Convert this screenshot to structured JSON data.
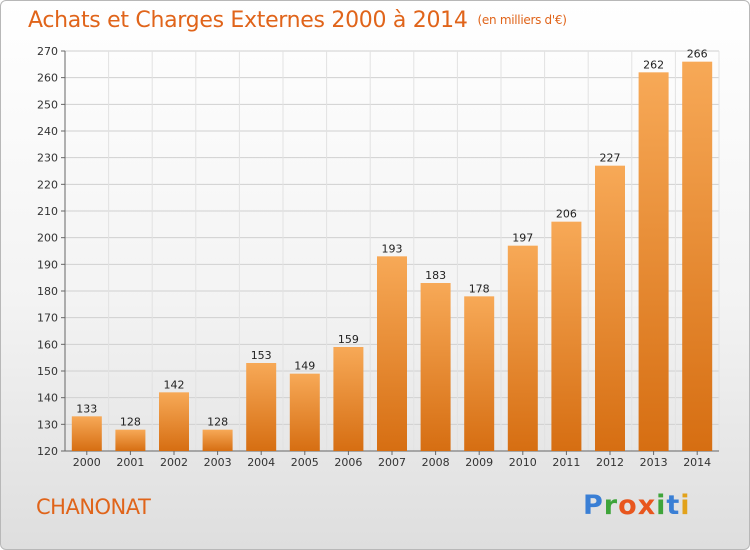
{
  "title": "Achats et Charges Externes 2000 à 2014",
  "unit_note": "(en milliers d'€)",
  "commune": "CHANONAT",
  "logo": {
    "text": "Proxiti",
    "letters": [
      "P",
      "r",
      "o",
      "x",
      "i",
      "t",
      "i"
    ],
    "colors": [
      "#3a7fd5",
      "#3ea43a",
      "#e8561e",
      "#e8561e",
      "#3ea43a",
      "#3a7fd5",
      "#e2a21a"
    ]
  },
  "colors": {
    "bar_top": "#f7a957",
    "bar_bottom": "#d66e12",
    "title": "#e0641a",
    "grid": "#d0d0d0"
  },
  "chart_data": {
    "type": "bar",
    "categories": [
      "2000",
      "2001",
      "2002",
      "2003",
      "2004",
      "2005",
      "2006",
      "2007",
      "2008",
      "2009",
      "2010",
      "2011",
      "2012",
      "2013",
      "2014"
    ],
    "values": [
      133,
      128,
      142,
      128,
      153,
      149,
      159,
      193,
      183,
      178,
      197,
      206,
      227,
      262,
      266
    ],
    "ylim": [
      120,
      270
    ],
    "yticks": [
      120,
      130,
      140,
      150,
      160,
      170,
      180,
      190,
      200,
      210,
      220,
      230,
      240,
      250,
      260,
      270
    ],
    "grid": true,
    "data_labels": true
  }
}
